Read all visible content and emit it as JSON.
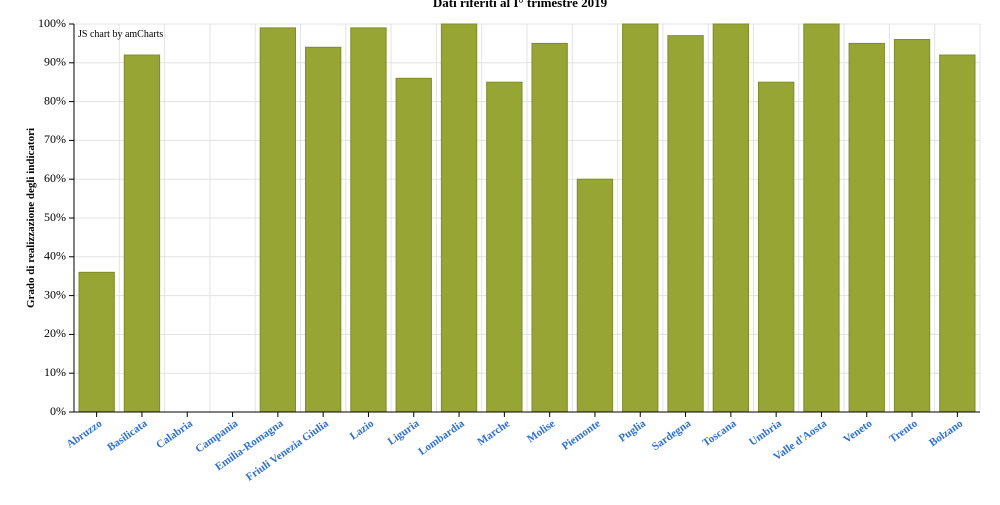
{
  "chart_data": {
    "type": "bar",
    "title": "Dati riferiti al I° trimestre 2019",
    "xlabel": "",
    "ylabel": "Grado di realizzazione degli indicatori",
    "credit": "JS chart by amCharts",
    "categories": [
      "Abruzzo",
      "Basilicata",
      "Calabria",
      "Campania",
      "Emilia-Romagna",
      "Friuli Venezia Giulia",
      "Lazio",
      "Liguria",
      "Lombardia",
      "Marche",
      "Molise",
      "Piemonte",
      "Puglia",
      "Sardegna",
      "Toscana",
      "Umbria",
      "Valle d'Aosta",
      "Veneto",
      "Trento",
      "Bolzano"
    ],
    "values": [
      36,
      92,
      0,
      0,
      99,
      94,
      99,
      86,
      100,
      85,
      95,
      60,
      100,
      97,
      100,
      85,
      100,
      95,
      96,
      92
    ],
    "ylim": [
      0,
      100
    ],
    "yticks": [
      0,
      10,
      20,
      30,
      40,
      50,
      60,
      70,
      80,
      90,
      100
    ],
    "ytick_labels": [
      "0%",
      "10%",
      "20%",
      "30%",
      "40%",
      "50%",
      "60%",
      "70%",
      "80%",
      "90%",
      "100%"
    ],
    "grid": true,
    "colors": {
      "bar_fill": "#97A535",
      "bar_stroke": "#7F8C2A",
      "x_label": "#2C6FD6",
      "grid": "#E3E3E3",
      "axis": "#000000"
    }
  }
}
